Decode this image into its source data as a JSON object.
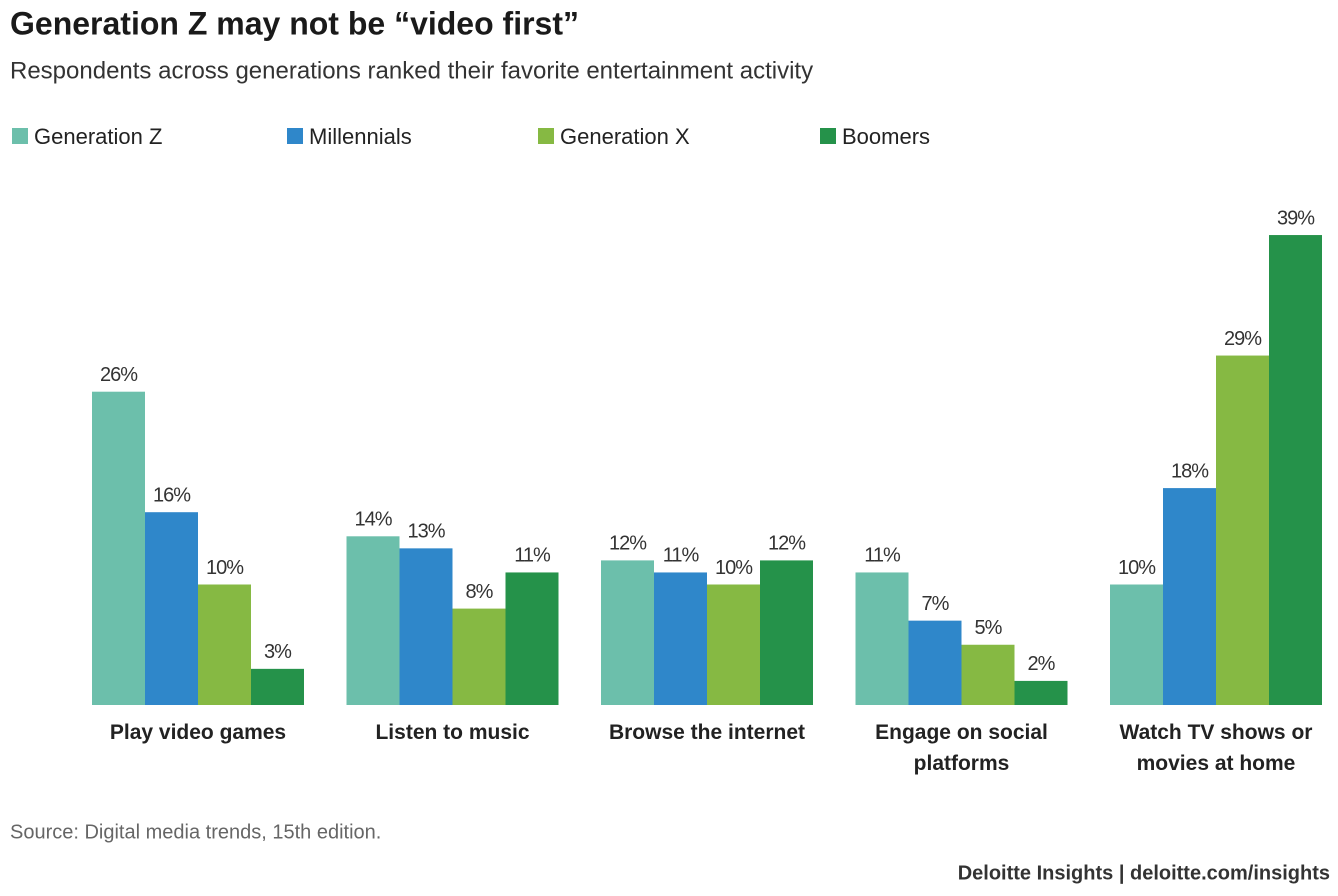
{
  "chart_data": {
    "type": "bar",
    "title": "Generation Z may not be “video first”",
    "subtitle": "Respondents across generations ranked their favorite entertainment activity",
    "categories": [
      "Play video games",
      "Listen to music",
      "Browse the internet",
      "Engage on social platforms",
      "Watch TV shows or movies at home"
    ],
    "series": [
      {
        "name": "Generation Z",
        "color": "#6cbfab",
        "values": [
          26,
          14,
          12,
          11,
          10
        ],
        "value_labels": [
          "26%",
          "14%",
          "12%",
          "11%",
          "10%"
        ]
      },
      {
        "name": "Millennials",
        "color": "#2f87ca",
        "values": [
          16,
          13,
          11,
          7,
          18
        ],
        "value_labels": [
          "16%",
          "13%",
          "11%",
          "7%",
          "18%"
        ]
      },
      {
        "name": "Generation X",
        "color": "#86b943",
        "values": [
          10,
          8,
          10,
          5,
          29
        ],
        "value_labels": [
          "10%",
          "8%",
          "10%",
          "5%",
          "29%"
        ]
      },
      {
        "name": "Boomers",
        "color": "#25924a",
        "values": [
          3,
          11,
          12,
          2,
          39
        ],
        "value_labels": [
          "3%",
          "11%",
          "12%",
          "2%",
          "39%"
        ]
      }
    ],
    "source": "Source: Digital media trends, 15th edition.",
    "credit": "Deloitte Insights | deloitte.com/insights"
  }
}
